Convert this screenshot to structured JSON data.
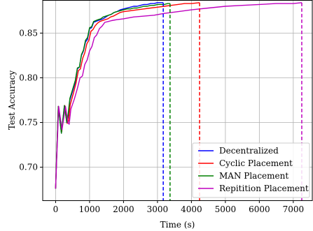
{
  "chart_data": {
    "type": "line",
    "title": "",
    "xlabel": "Time (s)",
    "ylabel": "Test Accuracy",
    "xlim": [
      -380,
      7560
    ],
    "ylim": [
      0.663,
      0.887
    ],
    "xticks": [
      0,
      1000,
      2000,
      3000,
      4000,
      5000,
      6000,
      7000
    ],
    "xtick_labels": [
      "0",
      "1000",
      "2000",
      "3000",
      "4000",
      "5000",
      "6000",
      "7000"
    ],
    "yticks": [
      0.7,
      0.75,
      0.8,
      0.85
    ],
    "ytick_labels": [
      "0.70",
      "0.75",
      "0.80",
      "0.85"
    ],
    "grid": true,
    "legend": "lower-right",
    "series": [
      {
        "name": "Decentralized",
        "color": "#0000ff",
        "end_x": 3170,
        "x": [
          0,
          80,
          170,
          260,
          330,
          370,
          420,
          500,
          580,
          640,
          700,
          760,
          820,
          880,
          940,
          1000,
          1060,
          1120,
          1180,
          1250,
          1330,
          1400,
          1480,
          1560,
          1640,
          1720,
          1800,
          1900,
          2000,
          2100,
          2200,
          2300,
          2400,
          2500,
          2600,
          2700,
          2800,
          2900,
          3000,
          3100,
          3170
        ],
        "y": [
          0.676,
          0.768,
          0.738,
          0.769,
          0.75,
          0.758,
          0.775,
          0.785,
          0.795,
          0.81,
          0.812,
          0.825,
          0.83,
          0.84,
          0.843,
          0.855,
          0.856,
          0.862,
          0.863,
          0.864,
          0.865,
          0.866,
          0.868,
          0.87,
          0.871,
          0.873,
          0.874,
          0.876,
          0.877,
          0.878,
          0.879,
          0.88,
          0.88,
          0.881,
          0.882,
          0.882,
          0.883,
          0.883,
          0.884,
          0.884,
          0.884
        ]
      },
      {
        "name": "Cyclic Placement",
        "color": "#ff0000",
        "end_x": 4240,
        "x": [
          0,
          80,
          180,
          270,
          340,
          380,
          430,
          520,
          600,
          670,
          730,
          800,
          860,
          920,
          980,
          1040,
          1100,
          1160,
          1230,
          1300,
          1380,
          1460,
          1540,
          1620,
          1700,
          1800,
          1900,
          2000,
          2200,
          2400,
          2600,
          2800,
          3000,
          3200,
          3400,
          3600,
          3800,
          4000,
          4240
        ],
        "y": [
          0.676,
          0.768,
          0.74,
          0.769,
          0.749,
          0.752,
          0.77,
          0.782,
          0.794,
          0.808,
          0.81,
          0.822,
          0.828,
          0.838,
          0.842,
          0.852,
          0.854,
          0.858,
          0.861,
          0.863,
          0.864,
          0.865,
          0.866,
          0.868,
          0.869,
          0.871,
          0.873,
          0.874,
          0.875,
          0.876,
          0.877,
          0.878,
          0.879,
          0.88,
          0.881,
          0.882,
          0.883,
          0.883,
          0.884
        ]
      },
      {
        "name": "MAN Placement",
        "color": "#008000",
        "end_x": 3370,
        "x": [
          0,
          80,
          170,
          260,
          330,
          370,
          420,
          500,
          580,
          640,
          700,
          760,
          820,
          880,
          940,
          1000,
          1060,
          1120,
          1180,
          1250,
          1330,
          1400,
          1480,
          1560,
          1640,
          1720,
          1800,
          1900,
          2000,
          2100,
          2200,
          2300,
          2400,
          2500,
          2600,
          2700,
          2800,
          2900,
          3000,
          3100,
          3200,
          3300,
          3370
        ],
        "y": [
          0.676,
          0.768,
          0.738,
          0.769,
          0.75,
          0.76,
          0.777,
          0.787,
          0.797,
          0.811,
          0.812,
          0.826,
          0.831,
          0.842,
          0.845,
          0.856,
          0.857,
          0.863,
          0.864,
          0.865,
          0.866,
          0.868,
          0.869,
          0.87,
          0.871,
          0.873,
          0.874,
          0.875,
          0.876,
          0.877,
          0.877,
          0.878,
          0.878,
          0.879,
          0.88,
          0.88,
          0.881,
          0.881,
          0.882,
          0.882,
          0.882,
          0.883,
          0.883
        ]
      },
      {
        "name": "Repitition Placement",
        "color": "#bf00bf",
        "end_x": 7250,
        "x": [
          0,
          90,
          190,
          290,
          360,
          400,
          450,
          550,
          640,
          720,
          790,
          860,
          930,
          1000,
          1070,
          1140,
          1210,
          1290,
          1370,
          1450,
          1550,
          1650,
          1800,
          2000,
          2300,
          2600,
          2900,
          3200,
          3600,
          4000,
          4500,
          5000,
          5500,
          6000,
          6500,
          7000,
          7250
        ],
        "y": [
          0.676,
          0.768,
          0.742,
          0.768,
          0.75,
          0.748,
          0.765,
          0.776,
          0.788,
          0.8,
          0.802,
          0.815,
          0.82,
          0.83,
          0.835,
          0.845,
          0.848,
          0.855,
          0.858,
          0.862,
          0.863,
          0.864,
          0.865,
          0.866,
          0.868,
          0.869,
          0.87,
          0.872,
          0.874,
          0.876,
          0.878,
          0.88,
          0.881,
          0.882,
          0.883,
          0.883,
          0.884
        ]
      }
    ]
  }
}
